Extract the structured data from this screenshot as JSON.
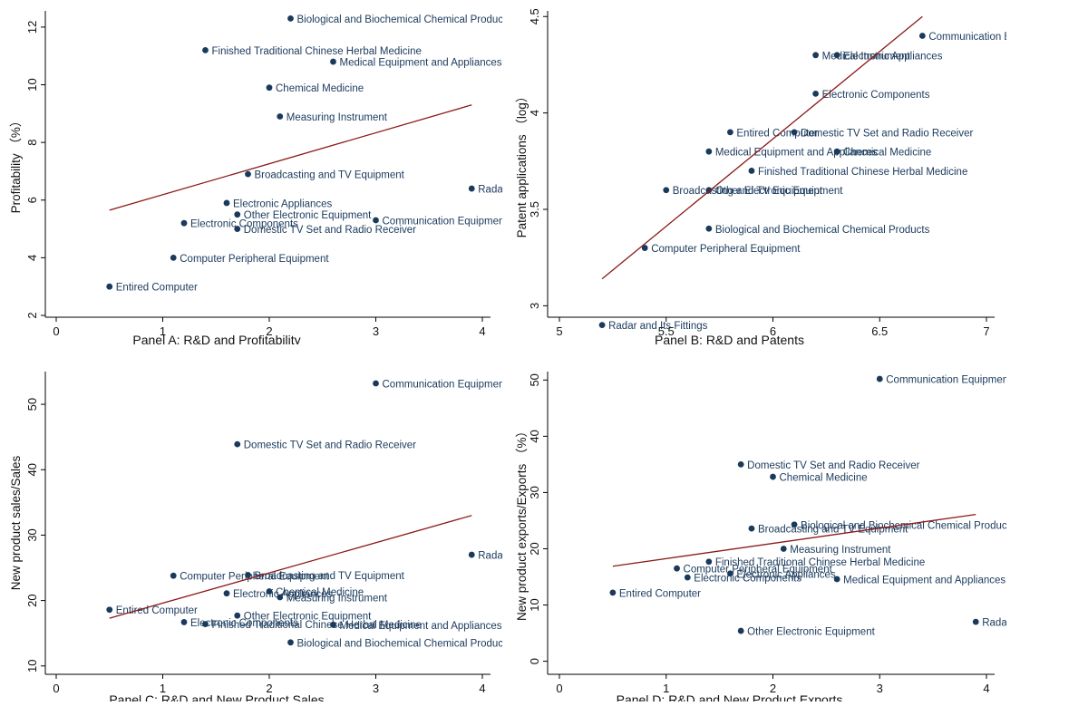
{
  "colors": {
    "marker": "#1a3a5c",
    "fit_line": "#8b1a1a",
    "axis": "#000000",
    "label": "#1a3a5c"
  },
  "chart_data": [
    {
      "type": "scatter",
      "panel_title": "Panel A: R&D and Profitability",
      "xlabel": "",
      "ylabel": "Profitability （%）",
      "xlim": [
        0,
        4
      ],
      "ylim": [
        2,
        12.5
      ],
      "xticks": [
        0,
        1,
        2,
        3,
        4
      ],
      "yticks": [
        2,
        4,
        6,
        8,
        10,
        12
      ],
      "fit_line": {
        "x": [
          0.5,
          3.9
        ],
        "y": [
          5.65,
          9.3
        ]
      },
      "points": [
        {
          "x": 2.2,
          "y": 12.3,
          "label": "Biological and Biochemical Chemical Products"
        },
        {
          "x": 1.4,
          "y": 11.2,
          "label": "Finished Traditional Chinese Herbal Medicine"
        },
        {
          "x": 2.6,
          "y": 10.8,
          "label": "Medical Equipment and Appliances"
        },
        {
          "x": 2.0,
          "y": 9.9,
          "label": "Chemical Medicine"
        },
        {
          "x": 2.1,
          "y": 8.9,
          "label": "Measuring Instrument"
        },
        {
          "x": 1.8,
          "y": 6.9,
          "label": "Broadcasting and TV Equipment"
        },
        {
          "x": 3.9,
          "y": 6.4,
          "label": "Radar"
        },
        {
          "x": 1.6,
          "y": 5.9,
          "label": "Electronic Appliances"
        },
        {
          "x": 1.7,
          "y": 5.5,
          "label": "Other Electronic Equipment"
        },
        {
          "x": 1.2,
          "y": 5.2,
          "label": "Electronic Components"
        },
        {
          "x": 3.0,
          "y": 5.3,
          "label": "Communication Equipment"
        },
        {
          "x": 1.7,
          "y": 5.0,
          "label": "Domestic TV Set and Radio Receiver"
        },
        {
          "x": 1.1,
          "y": 4.0,
          "label": "Computer Peripheral Equipment"
        },
        {
          "x": 0.5,
          "y": 3.0,
          "label": "Entired Computer"
        }
      ]
    },
    {
      "type": "scatter",
      "panel_title": "Panel B: R&D and Patents",
      "xlabel": "",
      "ylabel": "Patent applications （log）",
      "xlim": [
        5,
        7
      ],
      "ylim": [
        2.95,
        4.52
      ],
      "xticks": [
        5,
        5.5,
        6,
        6.5,
        7
      ],
      "yticks": [
        3,
        3.5,
        4,
        4.5
      ],
      "fit_line": {
        "x": [
          5.2,
          6.7
        ],
        "y": [
          3.14,
          4.5
        ]
      },
      "points": [
        {
          "x": 6.7,
          "y": 4.4,
          "label": "Communication Equipment"
        },
        {
          "x": 6.2,
          "y": 4.3,
          "label": "Medical Instrument"
        },
        {
          "x": 6.3,
          "y": 4.3,
          "label": "Electronic Appliances"
        },
        {
          "x": 6.2,
          "y": 4.1,
          "label": "Electronic Components"
        },
        {
          "x": 5.8,
          "y": 3.9,
          "label": "Entired Computer"
        },
        {
          "x": 6.1,
          "y": 3.9,
          "label": "Domestic TV Set and Radio Receiver"
        },
        {
          "x": 5.7,
          "y": 3.8,
          "label": "Medical Equipment and Appliances"
        },
        {
          "x": 6.3,
          "y": 3.8,
          "label": "Chemical Medicine"
        },
        {
          "x": 5.9,
          "y": 3.7,
          "label": "Finished Traditional Chinese Herbal Medicine"
        },
        {
          "x": 5.5,
          "y": 3.6,
          "label": "Broadcasting and TV Equipment"
        },
        {
          "x": 5.7,
          "y": 3.6,
          "label": "Other Electronic Equipment"
        },
        {
          "x": 5.7,
          "y": 3.4,
          "label": "Biological and Biochemical Chemical Products"
        },
        {
          "x": 5.4,
          "y": 3.3,
          "label": "Computer Peripheral Equipment"
        },
        {
          "x": 5.2,
          "y": 2.9,
          "label": "Radar and Its Fittings"
        }
      ]
    },
    {
      "type": "scatter",
      "panel_title": "Panel C: R&D and New Product Sales",
      "xlabel": "",
      "ylabel": "New product sales/Sales",
      "xlim": [
        0,
        4
      ],
      "ylim": [
        9,
        55
      ],
      "xticks": [
        0,
        1,
        2,
        3,
        4
      ],
      "yticks": [
        10,
        20,
        30,
        40,
        50
      ],
      "fit_line": {
        "x": [
          0.5,
          3.9
        ],
        "y": [
          17.3,
          33.0
        ]
      },
      "points": [
        {
          "x": 3.0,
          "y": 53.2,
          "label": "Communication Equipment"
        },
        {
          "x": 1.7,
          "y": 43.9,
          "label": "Domestic TV Set and Radio Receiver"
        },
        {
          "x": 3.9,
          "y": 27.0,
          "label": "Radar"
        },
        {
          "x": 1.1,
          "y": 23.8,
          "label": "Computer Peripheral Equipment"
        },
        {
          "x": 1.8,
          "y": 23.9,
          "label": "Broadcasting and TV Equipment"
        },
        {
          "x": 2.0,
          "y": 21.4,
          "label": "Chemical Medicine"
        },
        {
          "x": 1.6,
          "y": 21.1,
          "label": "Electronic Appliances"
        },
        {
          "x": 2.1,
          "y": 20.5,
          "label": "Measuring Instrument"
        },
        {
          "x": 0.5,
          "y": 18.6,
          "label": "Entired Computer"
        },
        {
          "x": 1.7,
          "y": 17.7,
          "label": "Other Electronic Equipment"
        },
        {
          "x": 1.2,
          "y": 16.7,
          "label": "Electronic Components"
        },
        {
          "x": 1.4,
          "y": 16.4,
          "label": "Finished Traditional Chinese Herbal Medicine"
        },
        {
          "x": 2.6,
          "y": 16.3,
          "label": "Medical Equipment and Appliances"
        },
        {
          "x": 2.2,
          "y": 13.6,
          "label": "Biological and Biochemical Chemical Products"
        }
      ]
    },
    {
      "type": "scatter",
      "panel_title": "Panel D: R&D and New Product Exports",
      "xlabel": "",
      "ylabel": "New product exports/Exports （%）",
      "xlim": [
        0,
        4
      ],
      "ylim": [
        -2,
        51.5
      ],
      "xticks": [
        0,
        1,
        2,
        3,
        4
      ],
      "yticks": [
        0,
        10,
        20,
        30,
        40,
        50
      ],
      "fit_line": {
        "x": [
          0.5,
          3.9
        ],
        "y": [
          16.9,
          26.1
        ]
      },
      "points": [
        {
          "x": 3.0,
          "y": 50.2,
          "label": "Communication Equipment"
        },
        {
          "x": 1.7,
          "y": 35.0,
          "label": "Domestic TV Set and Radio Receiver"
        },
        {
          "x": 2.0,
          "y": 32.8,
          "label": "Chemical Medicine"
        },
        {
          "x": 2.2,
          "y": 24.3,
          "label": "Biological and Biochemical Chemical Products"
        },
        {
          "x": 1.8,
          "y": 23.6,
          "label": "Broadcasting and TV Equipment"
        },
        {
          "x": 2.1,
          "y": 20.0,
          "label": "Measuring Instrument"
        },
        {
          "x": 1.4,
          "y": 17.7,
          "label": "Finished Traditional Chinese Herbal Medicine"
        },
        {
          "x": 1.1,
          "y": 16.5,
          "label": "Computer Peripheral Equipment"
        },
        {
          "x": 1.6,
          "y": 15.6,
          "label": "Electronic Appliances"
        },
        {
          "x": 1.2,
          "y": 14.9,
          "label": "Electronic Components"
        },
        {
          "x": 2.6,
          "y": 14.6,
          "label": "Medical Equipment and Appliances"
        },
        {
          "x": 0.5,
          "y": 12.2,
          "label": "Entired Computer"
        },
        {
          "x": 3.9,
          "y": 7.0,
          "label": "Radar and Its Fittings"
        },
        {
          "x": 1.7,
          "y": 5.4,
          "label": "Other Electronic Equipment"
        }
      ]
    }
  ]
}
